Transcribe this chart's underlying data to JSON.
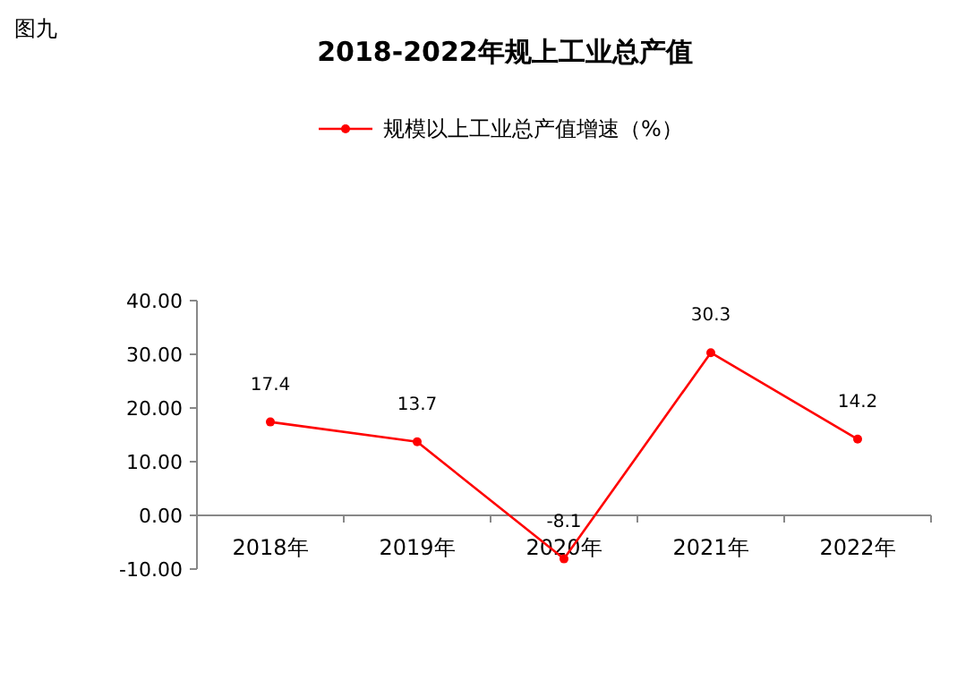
{
  "chart_data": {
    "type": "line",
    "title": "2018-2022年规上工业总产值",
    "annotations": [
      "图九"
    ],
    "categories": [
      "2018年",
      "2019年",
      "2020年",
      "2021年",
      "2022年"
    ],
    "series": [
      {
        "name": "规模以上工业总产值增速（%）",
        "color": "#ff0000",
        "values": [
          17.4,
          13.7,
          -8.1,
          30.3,
          14.2
        ]
      }
    ],
    "ylim": [
      -10,
      40
    ],
    "yticks": [
      {
        "value": -10,
        "label": "-10.00"
      },
      {
        "value": 0,
        "label": "0.00"
      },
      {
        "value": 10,
        "label": "10.00"
      },
      {
        "value": 20,
        "label": "20.00"
      },
      {
        "value": 30,
        "label": "30.00"
      },
      {
        "value": 40,
        "label": "40.00"
      }
    ],
    "data_labels": true,
    "legend": "top",
    "grid": false,
    "marker": "circle",
    "line_style": "solid"
  }
}
